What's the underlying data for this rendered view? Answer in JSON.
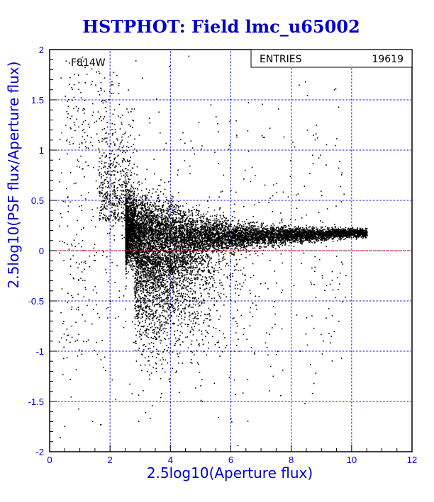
{
  "chart_data": {
    "type": "scatter",
    "title": "HSTPHOT: Field lmc_u65002",
    "xlabel": "2.5log10(Aperture flux)",
    "ylabel": "2.5log10(PSF flux/Aperture flux)",
    "xlim": [
      0,
      12
    ],
    "ylim": [
      -2,
      2
    ],
    "x_ticks": [
      0,
      2,
      4,
      6,
      8,
      10,
      12
    ],
    "y_ticks": [
      -2,
      -1.5,
      -1,
      -0.5,
      0,
      0.5,
      1,
      1.5,
      2
    ],
    "grid": true,
    "annotation": "F814W",
    "reference_line_y": 0,
    "stats_box": {
      "label": "ENTRIES",
      "value": "19619"
    },
    "entries": 19619,
    "point_distribution": {
      "description_of_density": "stellar locus tightens toward y≈0.18 at x≈10",
      "core_segments": [
        {
          "x": 2.6,
          "y_center": 0.2,
          "y_spread": 0.3
        },
        {
          "x": 3.0,
          "y_center": 0.17,
          "y_spread": 0.35
        },
        {
          "x": 3.5,
          "y_center": 0.13,
          "y_spread": 0.35
        },
        {
          "x": 4.0,
          "y_center": 0.12,
          "y_spread": 0.3
        },
        {
          "x": 5.0,
          "y_center": 0.14,
          "y_spread": 0.18
        },
        {
          "x": 6.0,
          "y_center": 0.15,
          "y_spread": 0.12
        },
        {
          "x": 7.0,
          "y_center": 0.15,
          "y_spread": 0.09
        },
        {
          "x": 8.0,
          "y_center": 0.16,
          "y_spread": 0.07
        },
        {
          "x": 9.0,
          "y_center": 0.17,
          "y_spread": 0.05
        },
        {
          "x": 10.0,
          "y_center": 0.18,
          "y_spread": 0.04
        }
      ]
    }
  },
  "colors": {
    "frame": "#000000",
    "grid": "#0000cc",
    "axis_text": "#0000cc",
    "title": "#0000cc",
    "points": "#000000",
    "zero_line": "#cc0000"
  }
}
